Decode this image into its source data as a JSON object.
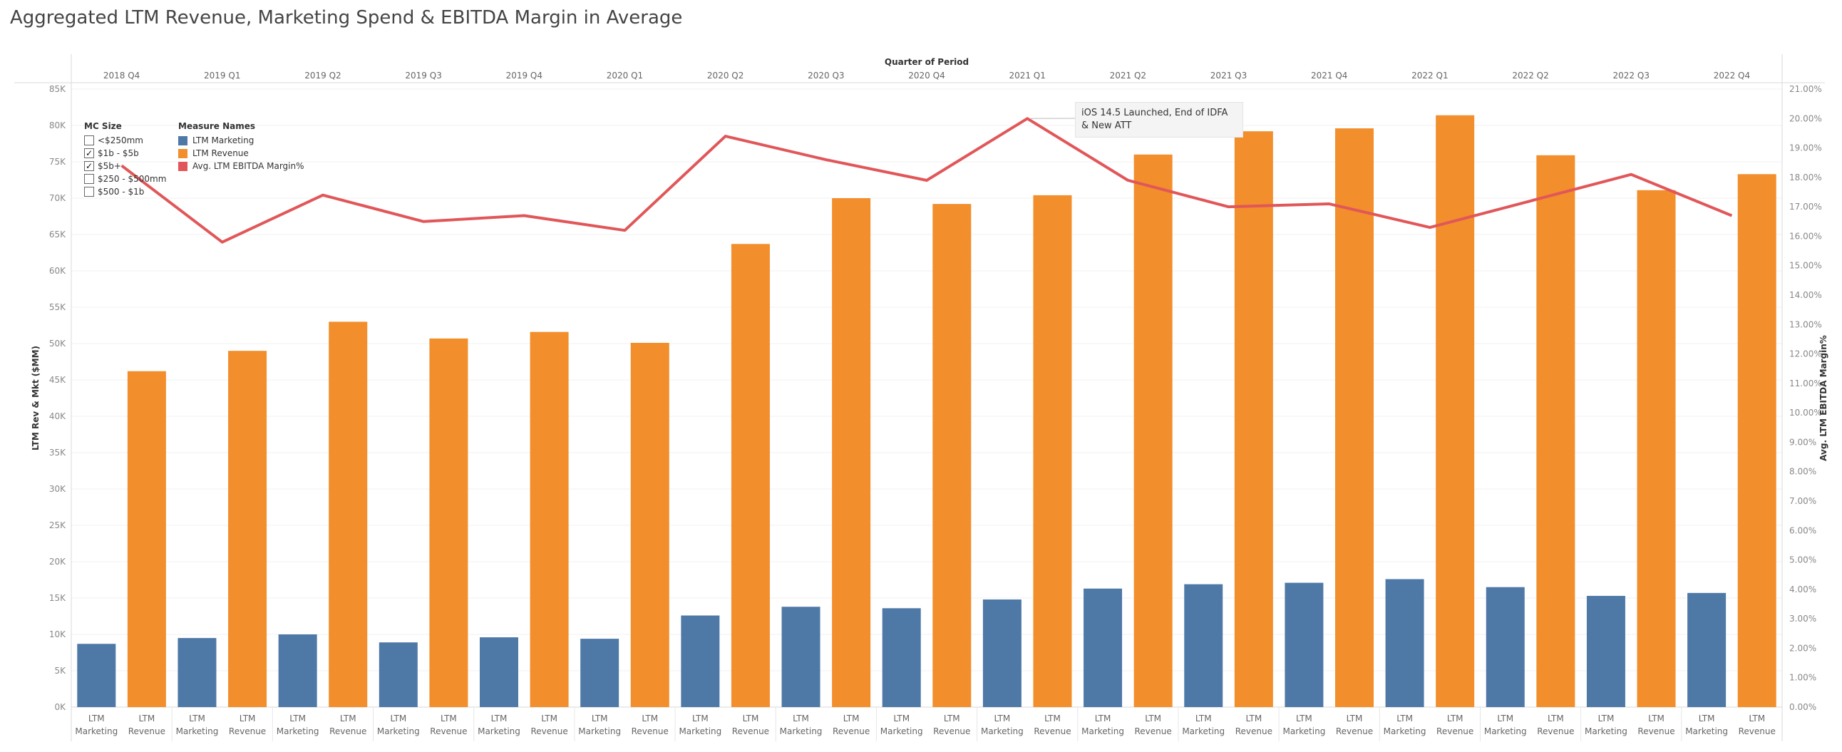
{
  "title": "Aggregated LTM Revenue, Marketing Spend & EBITDA Margin in Average",
  "legend": {
    "mc_size_title": "MC Size",
    "mc_size_items": [
      {
        "label": "<$250mm",
        "checked": false
      },
      {
        "label": "$1b - $5b",
        "checked": true
      },
      {
        "label": "$5b+",
        "checked": true
      },
      {
        "label": "$250 - $500mm",
        "checked": false
      },
      {
        "label": "$500 - $1b",
        "checked": false
      }
    ],
    "measure_title": "Measure Names",
    "measure_items": [
      {
        "label": "LTM Marketing",
        "color": "#4e79a7"
      },
      {
        "label": "LTM Revenue",
        "color": "#f28e2b"
      },
      {
        "label": "Avg. LTM EBITDA Margin%",
        "color": "#e15759"
      }
    ]
  },
  "annotation": {
    "text": "iOS 14.5 Launched, End of IDFA & New ATT",
    "quarter": "2021 Q1"
  },
  "chart_data": {
    "type": "bar",
    "top_axis_title": "Quarter of Period",
    "categories": [
      "2018 Q4",
      "2019 Q1",
      "2019 Q2",
      "2019 Q3",
      "2019 Q4",
      "2020 Q1",
      "2020 Q2",
      "2020 Q3",
      "2020 Q4",
      "2021 Q1",
      "2021 Q2",
      "2021 Q3",
      "2021 Q4",
      "2022 Q1",
      "2022 Q2",
      "2022 Q3",
      "2022 Q4"
    ],
    "bar_labels": [
      "LTM Marketing",
      "LTM Revenue"
    ],
    "series": [
      {
        "name": "LTM Marketing",
        "color": "#4e79a7",
        "axis": "left",
        "values": [
          8700,
          9500,
          10000,
          8900,
          9600,
          9400,
          12600,
          13800,
          13600,
          14800,
          16300,
          16900,
          17100,
          17600,
          16500,
          15300,
          15700
        ]
      },
      {
        "name": "LTM Revenue",
        "color": "#f28e2b",
        "axis": "left",
        "values": [
          46200,
          49000,
          53000,
          50700,
          51600,
          50100,
          63700,
          70000,
          69200,
          70400,
          76000,
          79200,
          79600,
          81400,
          75900,
          71100,
          73300
        ]
      },
      {
        "name": "Avg. LTM EBITDA Margin%",
        "color": "#e15759",
        "axis": "right",
        "type": "line",
        "values": [
          18.4,
          15.8,
          17.4,
          16.5,
          16.7,
          16.2,
          19.4,
          18.6,
          17.9,
          20.0,
          17.9,
          17.0,
          17.1,
          16.3,
          17.2,
          18.1,
          16.7
        ]
      }
    ],
    "ylabel": "LTM Rev & Mkt ($MM)",
    "ylim": [
      0,
      85000
    ],
    "yticks": [
      0,
      5000,
      10000,
      15000,
      20000,
      25000,
      30000,
      35000,
      40000,
      45000,
      50000,
      55000,
      60000,
      65000,
      70000,
      75000,
      80000,
      85000
    ],
    "ytick_labels": [
      "0K",
      "5K",
      "10K",
      "15K",
      "20K",
      "25K",
      "30K",
      "35K",
      "40K",
      "45K",
      "50K",
      "55K",
      "60K",
      "65K",
      "70K",
      "75K",
      "80K",
      "85K"
    ],
    "y2label": "Avg. LTM EBITDA Margin%",
    "y2lim": [
      0,
      21
    ],
    "y2ticks": [
      0,
      1,
      2,
      3,
      4,
      5,
      6,
      7,
      8,
      9,
      10,
      11,
      12,
      13,
      14,
      15,
      16,
      17,
      18,
      19,
      20,
      21
    ],
    "y2tick_labels": [
      "0.00%",
      "1.00%",
      "2.00%",
      "3.00%",
      "4.00%",
      "5.00%",
      "6.00%",
      "7.00%",
      "8.00%",
      "9.00%",
      "10.00%",
      "11.00%",
      "12.00%",
      "13.00%",
      "14.00%",
      "15.00%",
      "16.00%",
      "17.00%",
      "18.00%",
      "19.00%",
      "20.00%",
      "21.00%"
    ],
    "grid": true,
    "legend_position": "top-left"
  }
}
